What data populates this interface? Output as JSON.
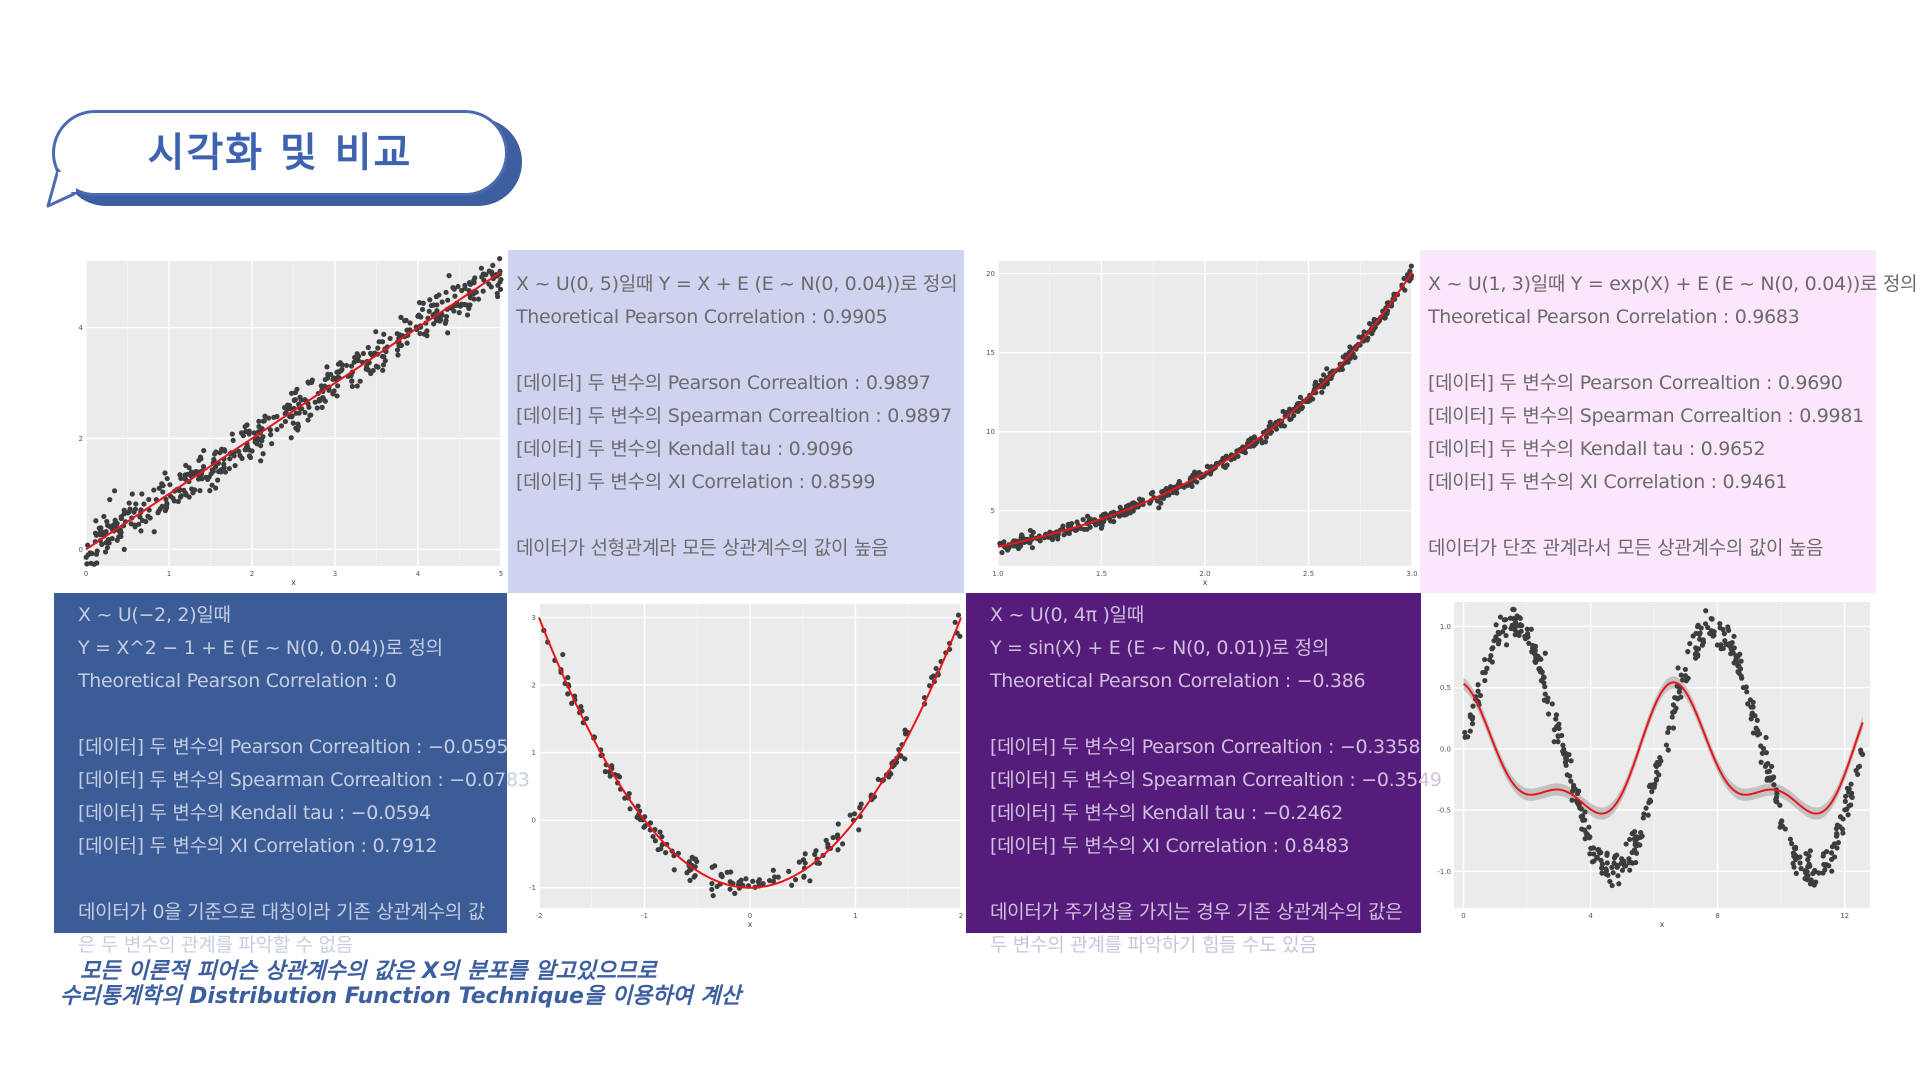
{
  "slide_title": "시각화 및 비교",
  "colors": {
    "panel1_bg": "#cfd3f0",
    "panel1_text": "#6b6b6b",
    "panel2_bg": "#fbe6fb",
    "panel2_text": "#6b6b6b",
    "panel3_bg": "#3b5c97",
    "panel3_text": "#c5cde0",
    "panel4_bg": "#561c7b",
    "panel4_text": "#cfc0de",
    "plot_bg": "#ebebeb",
    "points": "#3d3d3d",
    "fit_line": "#e8161b",
    "ribbon": "#b8b8b8",
    "note": "#3d5fa0"
  },
  "panels": {
    "linear": {
      "lines": [
        "X ~ U(0, 5)일때 Y = X + E (E ~ N(0, 0.04))로 정의",
        "Theoretical Pearson Correlation : 0.9905",
        "",
        "[데이터] 두 변수의 Pearson Correaltion : 0.9897",
        "[데이터] 두 변수의 Spearman Correaltion : 0.9897",
        "[데이터] 두 변수의 Kendall tau : 0.9096",
        "[데이터] 두 변수의 XI Correlation : 0.8599",
        "",
        "데이터가 선형관계라 모든 상관계수의 값이 높음"
      ]
    },
    "exp": {
      "lines": [
        "X ~ U(1, 3)일때 Y = exp(X) + E (E ~ N(0, 0.04))로 정의",
        "Theoretical Pearson Correlation : 0.9683",
        "",
        "[데이터] 두 변수의 Pearson Correaltion : 0.9690",
        "[데이터] 두 변수의 Spearman Correaltion : 0.9981",
        "[데이터] 두 변수의 Kendall tau : 0.9652",
        "[데이터] 두 변수의 XI Correlation : 0.9461",
        "",
        "데이터가 단조 관계라서 모든 상관계수의 값이 높음"
      ]
    },
    "quad": {
      "lines": [
        "X ~ U(−2, 2)일때",
        "Y = X^2  − 1 + E (E ~ N(0, 0.04))로 정의",
        "Theoretical Pearson Correlation : 0",
        "",
        "[데이터] 두 변수의 Pearson Correaltion : −0.0595",
        "[데이터] 두 변수의 Spearman Correaltion : −0.0783",
        "[데이터] 두 변수의 Kendall tau : −0.0594",
        "[데이터] 두 변수의 XI Correlation : 0.7912",
        "",
        "데이터가 0을 기준으로 대칭이라 기존 상관계수의 값",
        "은 두 변수의 관계를 파악할 수 없음"
      ]
    },
    "sin": {
      "lines": [
        "X ~ U(0, 4π )일때",
        "Y = sin(X) + E (E ~ N(0, 0.01))로 정의",
        "Theoretical Pearson Correlation : −0.386",
        "",
        "[데이터] 두 변수의 Pearson Correaltion : −0.3358",
        "[데이터] 두 변수의 Spearman Correaltion : −0.3549",
        "[데이터] 두 변수의 Kendall tau : −0.2462",
        "[데이터] 두 변수의 XI Correlation : 0.8483",
        "",
        "데이터가 주기성을 가지는 경우 기존 상관계수의 값은",
        "두 변수의 관계를 파악하기 힘들 수도 있음"
      ]
    }
  },
  "chart_data": [
    {
      "type": "scatter",
      "id": "plot-linear",
      "xlabel": "x",
      "ylabel": "",
      "xlim": [
        0,
        5
      ],
      "ylim": [
        -0.3,
        5.2
      ],
      "xticks": [
        "0",
        "1",
        "2",
        "3",
        "4",
        "5"
      ],
      "yticks": [
        "0",
        "2",
        "4"
      ],
      "series": [
        {
          "model": "y = x + e, e ~ N(0,0.04)",
          "x_range": [
            0,
            5
          ],
          "n_points": 500
        }
      ],
      "fit": "linear",
      "grid": true
    },
    {
      "type": "scatter",
      "id": "plot-exp",
      "xlabel": "x",
      "ylabel": "",
      "xlim": [
        1,
        3
      ],
      "ylim": [
        1.5,
        20.8
      ],
      "xticks": [
        "1.0",
        "1.5",
        "2.0",
        "2.5",
        "3.0"
      ],
      "yticks": [
        "5",
        "10",
        "15",
        "20"
      ],
      "series": [
        {
          "model": "y = exp(x) + e, e ~ N(0,0.04)",
          "x_range": [
            1,
            3
          ],
          "n_points": 500
        }
      ],
      "fit": "exp",
      "grid": true
    },
    {
      "type": "scatter",
      "id": "plot-quad",
      "xlabel": "x",
      "ylabel": "",
      "xlim": [
        -2,
        2
      ],
      "ylim": [
        -1.3,
        3.2
      ],
      "xticks": [
        "-2",
        "-1",
        "0",
        "1",
        "2"
      ],
      "yticks": [
        "-1",
        "0",
        "1",
        "2",
        "3"
      ],
      "series": [
        {
          "model": "y = x^2 - 1 + e, e ~ N(0,0.04)",
          "x_range": [
            -2,
            2
          ],
          "n_points": 200
        }
      ],
      "fit": "quadratic",
      "grid": true
    },
    {
      "type": "scatter",
      "id": "plot-sin",
      "xlabel": "x",
      "ylabel": "",
      "xlim": [
        -0.3,
        12.8
      ],
      "ylim": [
        -1.3,
        1.2
      ],
      "xticks": [
        "0",
        "4",
        "8",
        "12"
      ],
      "yticks": [
        "-1.0",
        "-0.5",
        "0.0",
        "0.5",
        "1.0"
      ],
      "series": [
        {
          "model": "y = sin(x) + e, e ~ N(0,0.01)",
          "x_range": [
            0,
            12.57
          ],
          "n_points": 500
        }
      ],
      "fit": "loess-with-ribbon",
      "grid": true
    }
  ],
  "footnote": {
    "line1": "모든 이론적 피어슨 상관계수의 값은 X의 분포를 알고있으므로",
    "line2": "수리통계학의 Distribution Function Technique을 이용하여 계산"
  }
}
